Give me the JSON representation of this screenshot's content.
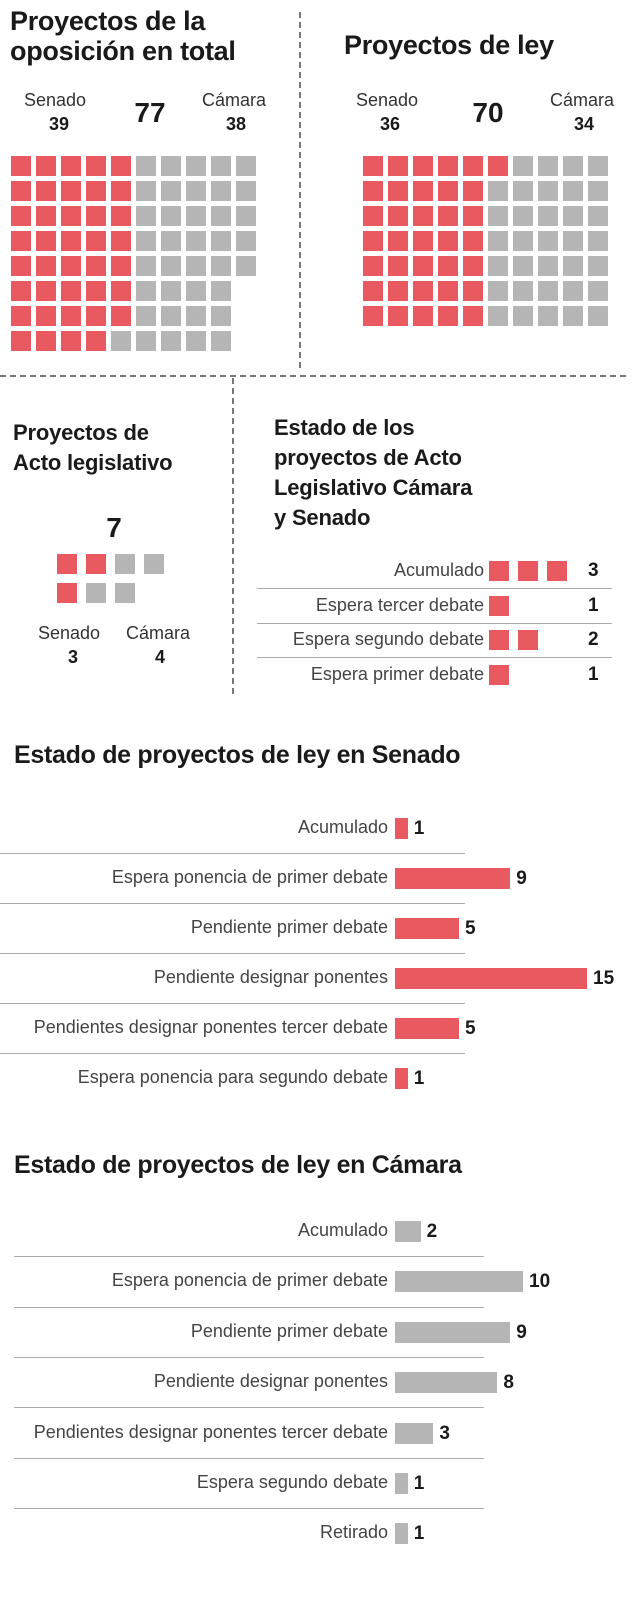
{
  "panels": {
    "total": {
      "title_l1": "Proyectos de la",
      "title_l2": "oposición en total",
      "senado_label": "Senado",
      "senado": 39,
      "camara_label": "Cámara",
      "camara": 38,
      "total": 77
    },
    "ley": {
      "title": "Proyectos de ley",
      "senado_label": "Senado",
      "senado": 36,
      "camara_label": "Cámara",
      "camara": 34,
      "total": 70
    },
    "acto": {
      "title_l1": "Proyectos de",
      "title_l2": "Acto legislativo",
      "senado_label": "Senado",
      "senado": 3,
      "camara_label": "Cámara",
      "camara": 4,
      "total": 7
    }
  },
  "colors": {
    "senado": "#e85a5f",
    "camara": "#b5b5b5"
  },
  "chart_data": [
    {
      "type": "bar",
      "title": "Estado de los proyectos de Acto Legislativo Cámara y Senado",
      "title_lines": [
        "Estado de los",
        "proyectos de Acto",
        "Legislativo Cámara",
        "y Senado"
      ],
      "categories": [
        "Acumulado",
        "Espera tercer debate",
        "Espera segundo debate",
        "Espera primer debate"
      ],
      "values": [
        3,
        1,
        2,
        1
      ]
    },
    {
      "type": "bar",
      "title": "Estado de proyectos de ley en Senado",
      "categories": [
        "Acumulado",
        "Espera ponencia de primer debate",
        "Pendiente primer debate",
        "Pendiente designar ponentes",
        "Pendientes designar ponentes tercer debate",
        "Espera ponencia para segundo debate"
      ],
      "values": [
        1,
        9,
        5,
        15,
        5,
        1
      ]
    },
    {
      "type": "bar",
      "title": "Estado de proyectos de ley en Cámara",
      "categories": [
        "Acumulado",
        "Espera ponencia de primer debate",
        "Pendiente primer debate",
        "Pendiente designar ponentes",
        "Pendientes designar ponentes tercer debate",
        "Espera segundo debate",
        "Retirado"
      ],
      "values": [
        2,
        10,
        9,
        8,
        3,
        1,
        1
      ]
    }
  ]
}
